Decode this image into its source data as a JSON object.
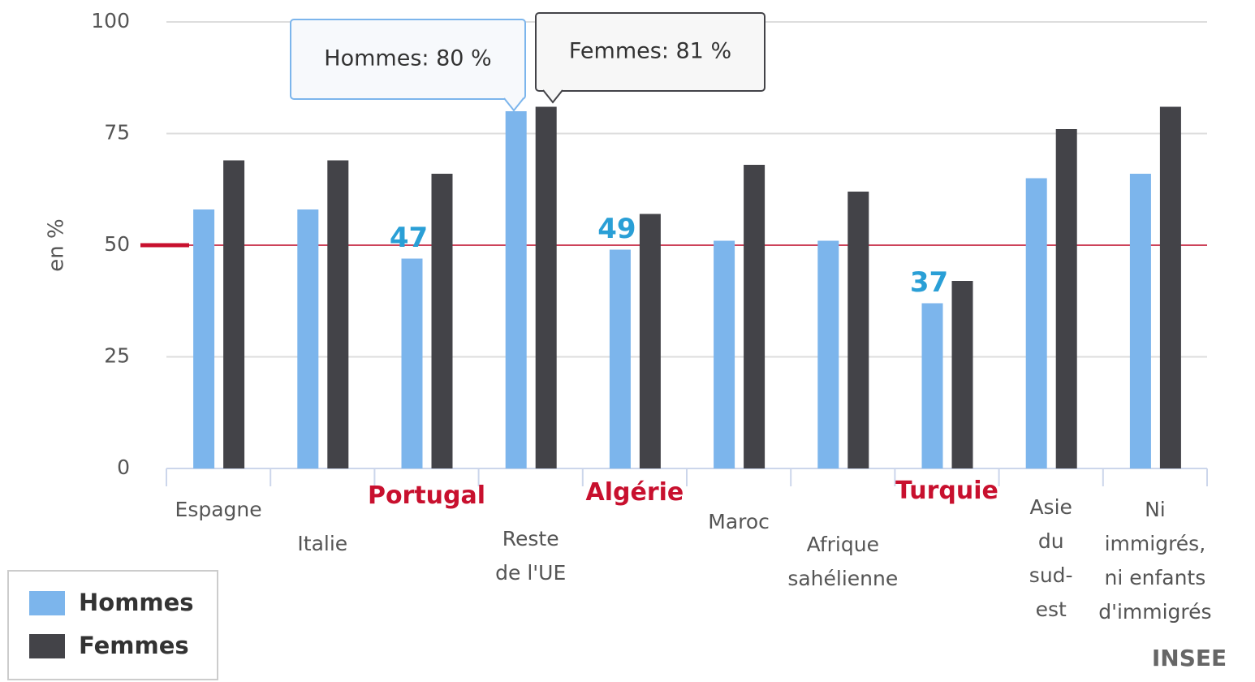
{
  "chart_data": {
    "type": "bar",
    "y_label": "en %",
    "source": "INSEE",
    "categories": [
      "Espagne",
      "Italie",
      "Portugal",
      "Reste de l'UE",
      "Algérie",
      "Maroc",
      "Afrique sahélienne",
      "Turquie",
      "Asie du sud-est",
      "Ni immigrés, ni enfants d'immigrés"
    ],
    "highlight": [
      false,
      false,
      true,
      false,
      true,
      false,
      false,
      true,
      false,
      false
    ],
    "series": [
      {
        "name": "Hommes",
        "color": "#7cb5ec",
        "values": [
          58,
          58,
          47,
          80,
          49,
          51,
          51,
          37,
          65,
          66
        ]
      },
      {
        "name": "Femmes",
        "color": "#434348",
        "values": [
          69,
          69,
          66,
          81,
          57,
          68,
          62,
          42,
          76,
          81
        ]
      }
    ],
    "reference_line": 50,
    "reference_color": "#c8102e",
    "tooltips": [
      {
        "text": "Hommes: 80 %"
      },
      {
        "text": "Femmes: 81 %"
      }
    ],
    "ylim": [
      0,
      100
    ],
    "yticks": [
      0,
      25,
      50,
      75,
      100
    ],
    "grid": true,
    "legend": "bottom-left"
  }
}
